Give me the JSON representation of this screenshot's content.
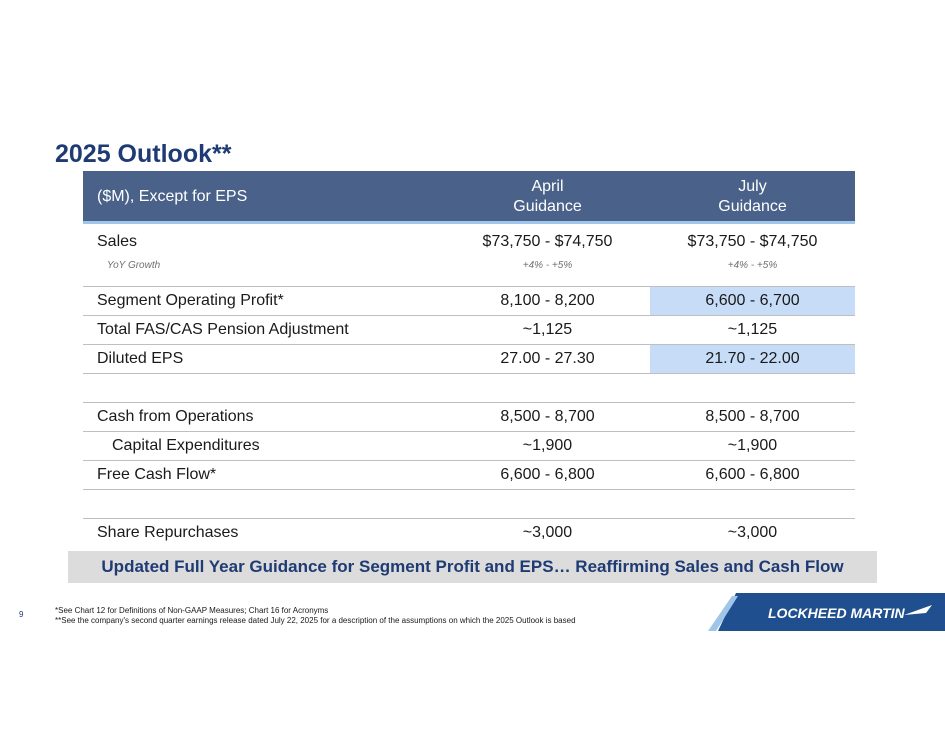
{
  "title": "2025 Outlook**",
  "header": {
    "col0": "($M), Except for EPS",
    "col1_line1": "April",
    "col1_line2": "Guidance",
    "col2_line1": "July",
    "col2_line2": "Guidance"
  },
  "rows": [
    {
      "label": "Sales",
      "april": "$73,750 - $74,750",
      "july": "$73,750 - $74,750",
      "sub_label": "YoY Growth",
      "sub_april": "+4%   -   +5%",
      "sub_july": "+4%   -   +5%"
    },
    {
      "label": "Segment Operating Profit*",
      "april": "8,100 - 8,200",
      "july": "6,600 - 6,700"
    },
    {
      "label": "Total FAS/CAS Pension Adjustment",
      "april": "~1,125",
      "july": "~1,125"
    },
    {
      "label": "Diluted EPS",
      "april": "27.00 - 27.30",
      "july": "21.70 - 22.00"
    },
    {
      "label": "Cash from Operations",
      "april": "8,500 - 8,700",
      "july": "8,500 - 8,700"
    },
    {
      "label": "Capital Expenditures",
      "april": "~1,900",
      "july": "~1,900"
    },
    {
      "label": "Free Cash Flow*",
      "april": "6,600 - 6,800",
      "july": "6,600 - 6,800"
    },
    {
      "label": "Share Repurchases",
      "april": "~3,000",
      "july": "~3,000"
    }
  ],
  "banner": "Updated Full Year Guidance for Segment Profit and EPS… Reaffirming Sales and Cash Flow",
  "page_number": "9",
  "footnotes": [
    "*See Chart 12 for Definitions of Non-GAAP Measures; Chart 16 for Acronyms",
    "**See the company's second quarter earnings release dated July 22, 2025 for a description of the assumptions on which the 2025 Outlook is based"
  ],
  "logo_text": "LOCKHEED MARTIN",
  "colors": {
    "title": "#1f3b73",
    "header_bg": "#4a628a",
    "highlight": "#c6dcf7",
    "banner_bg": "#dcdcdc"
  }
}
